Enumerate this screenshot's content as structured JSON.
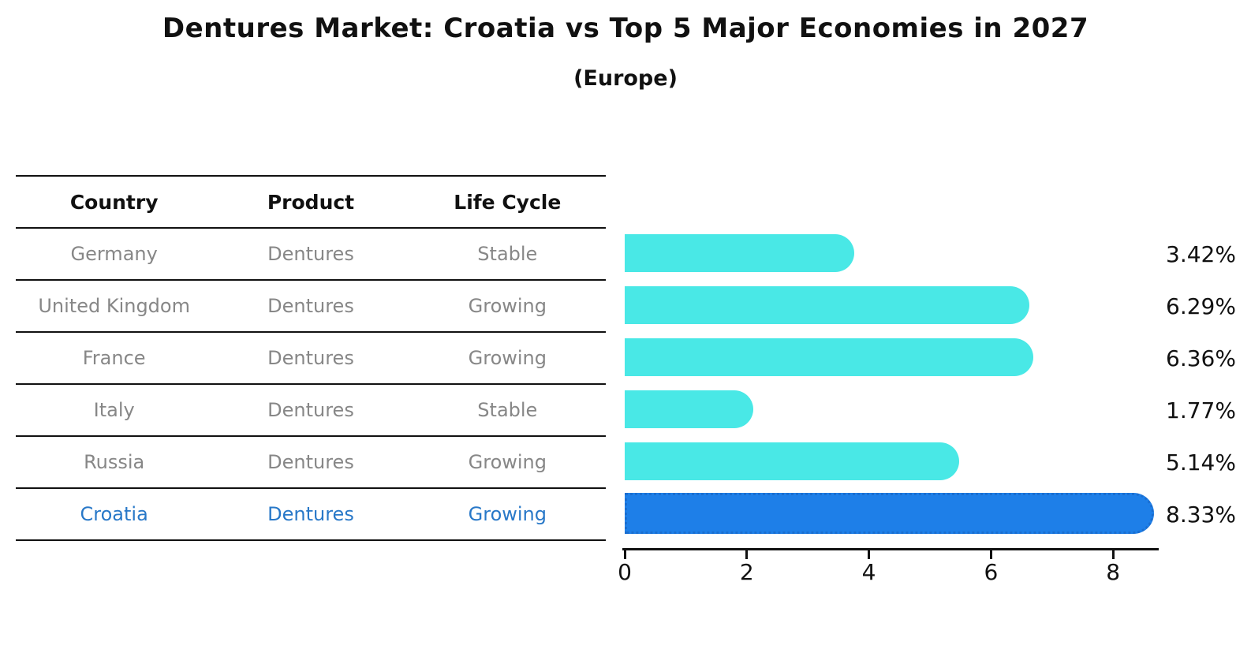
{
  "title": "Dentures Market: Croatia vs Top 5 Major Economies in 2027",
  "subtitle": "(Europe)",
  "table": {
    "headers": {
      "country": "Country",
      "product": "Product",
      "life_cycle": "Life Cycle"
    },
    "rows": [
      {
        "country": "Germany",
        "product": "Dentures",
        "life_cycle": "Stable"
      },
      {
        "country": "United Kingdom",
        "product": "Dentures",
        "life_cycle": "Growing"
      },
      {
        "country": "France",
        "product": "Dentures",
        "life_cycle": "Growing"
      },
      {
        "country": "Italy",
        "product": "Dentures",
        "life_cycle": "Stable"
      },
      {
        "country": "Russia",
        "product": "Dentures",
        "life_cycle": "Growing"
      },
      {
        "country": "Croatia",
        "product": "Dentures",
        "life_cycle": "Growing"
      }
    ]
  },
  "chart_data": {
    "type": "bar",
    "orientation": "horizontal",
    "title": "Dentures Market: Croatia vs Top 5 Major Economies in 2027",
    "subtitle": "(Europe)",
    "categories": [
      "Germany",
      "United Kingdom",
      "France",
      "Italy",
      "Russia",
      "Croatia"
    ],
    "values": [
      3.42,
      6.29,
      6.36,
      1.77,
      5.14,
      8.33
    ],
    "value_labels": [
      "3.42%",
      "6.29%",
      "6.36%",
      "1.77%",
      "5.14%",
      "8.33%"
    ],
    "unit": "%",
    "xticks": [
      0,
      2,
      4,
      6,
      8
    ],
    "xlim": [
      0,
      8.75
    ],
    "grid": false,
    "legend": false,
    "highlight_index": 5,
    "bar_color": "#49E8E6",
    "highlight_color": "#1E7FE8",
    "highlight_border_color": "#1A6ED0",
    "highlight_text_color": "#2878C8"
  }
}
